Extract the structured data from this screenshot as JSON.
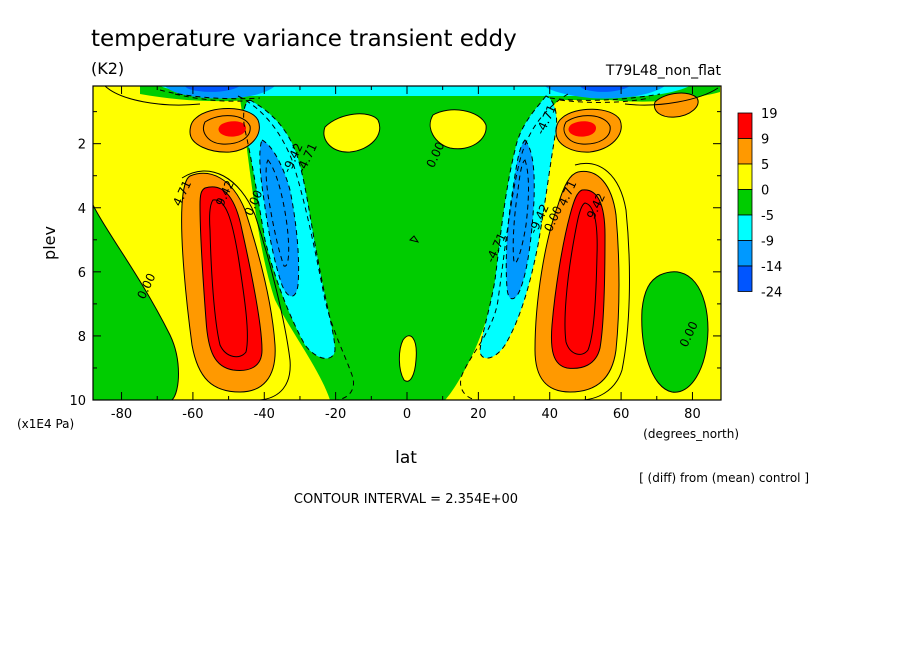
{
  "chart_data": {
    "type": "heatmap",
    "title": "temperature variance transient eddy",
    "units": "(K2)",
    "run_label": "T79L48_non_flat",
    "xlabel": "lat",
    "xunits": "(degrees_north)",
    "ylabel": "plev",
    "yunits": "(x1E4 Pa)",
    "xlim": [
      -88,
      88
    ],
    "ylim": [
      10,
      0.2
    ],
    "x_ticks": [
      -80,
      -60,
      -40,
      -20,
      0,
      20,
      40,
      60,
      80
    ],
    "x_tick_labels": [
      "-80",
      "-60",
      "-40",
      "-20",
      "0",
      "20",
      "40",
      "60",
      "80"
    ],
    "y_ticks": [
      2,
      4,
      6,
      8,
      10
    ],
    "y_tick_labels": [
      "2",
      "4",
      "6",
      "8",
      "10"
    ],
    "colorbar": {
      "labels": [
        "19",
        "9",
        "5",
        "0",
        "-5",
        "-9",
        "-14",
        "-24"
      ],
      "colors": [
        "#ff0000",
        "#ff9900",
        "#ffff00",
        "#00cc00",
        "#00ffff",
        "#0099ff",
        "#0055ff"
      ]
    },
    "contour_labels": [
      {
        "text": "4.71",
        "lat": -62,
        "plev": 3.6
      },
      {
        "text": "9.42",
        "lat": -50,
        "plev": 3.6
      },
      {
        "text": "0.00",
        "lat": -42,
        "plev": 3.9
      },
      {
        "text": "-9.42",
        "lat": -31,
        "plev": 2.5
      },
      {
        "text": "-4.71",
        "lat": -27,
        "plev": 2.5
      },
      {
        "text": "0.00",
        "lat": -72,
        "plev": 6.5
      },
      {
        "text": "0.00",
        "lat": 9,
        "plev": 2.4
      },
      {
        "text": "-4.71",
        "lat": 26,
        "plev": 5.3
      },
      {
        "text": "-9.42",
        "lat": 38,
        "plev": 4.4
      },
      {
        "text": "0.00",
        "lat": 42,
        "plev": 4.4
      },
      {
        "text": "4.71",
        "lat": 46,
        "plev": 3.6
      },
      {
        "text": "9.42",
        "lat": 54,
        "plev": 4.0
      },
      {
        "text": "-4.71",
        "lat": 40,
        "plev": 1.3
      },
      {
        "text": "0.00",
        "lat": 80,
        "plev": 8.0
      }
    ],
    "note": "[ (diff) from (mean) control ]",
    "contour_interval": "CONTOUR INTERVAL = 2.354E+00"
  }
}
